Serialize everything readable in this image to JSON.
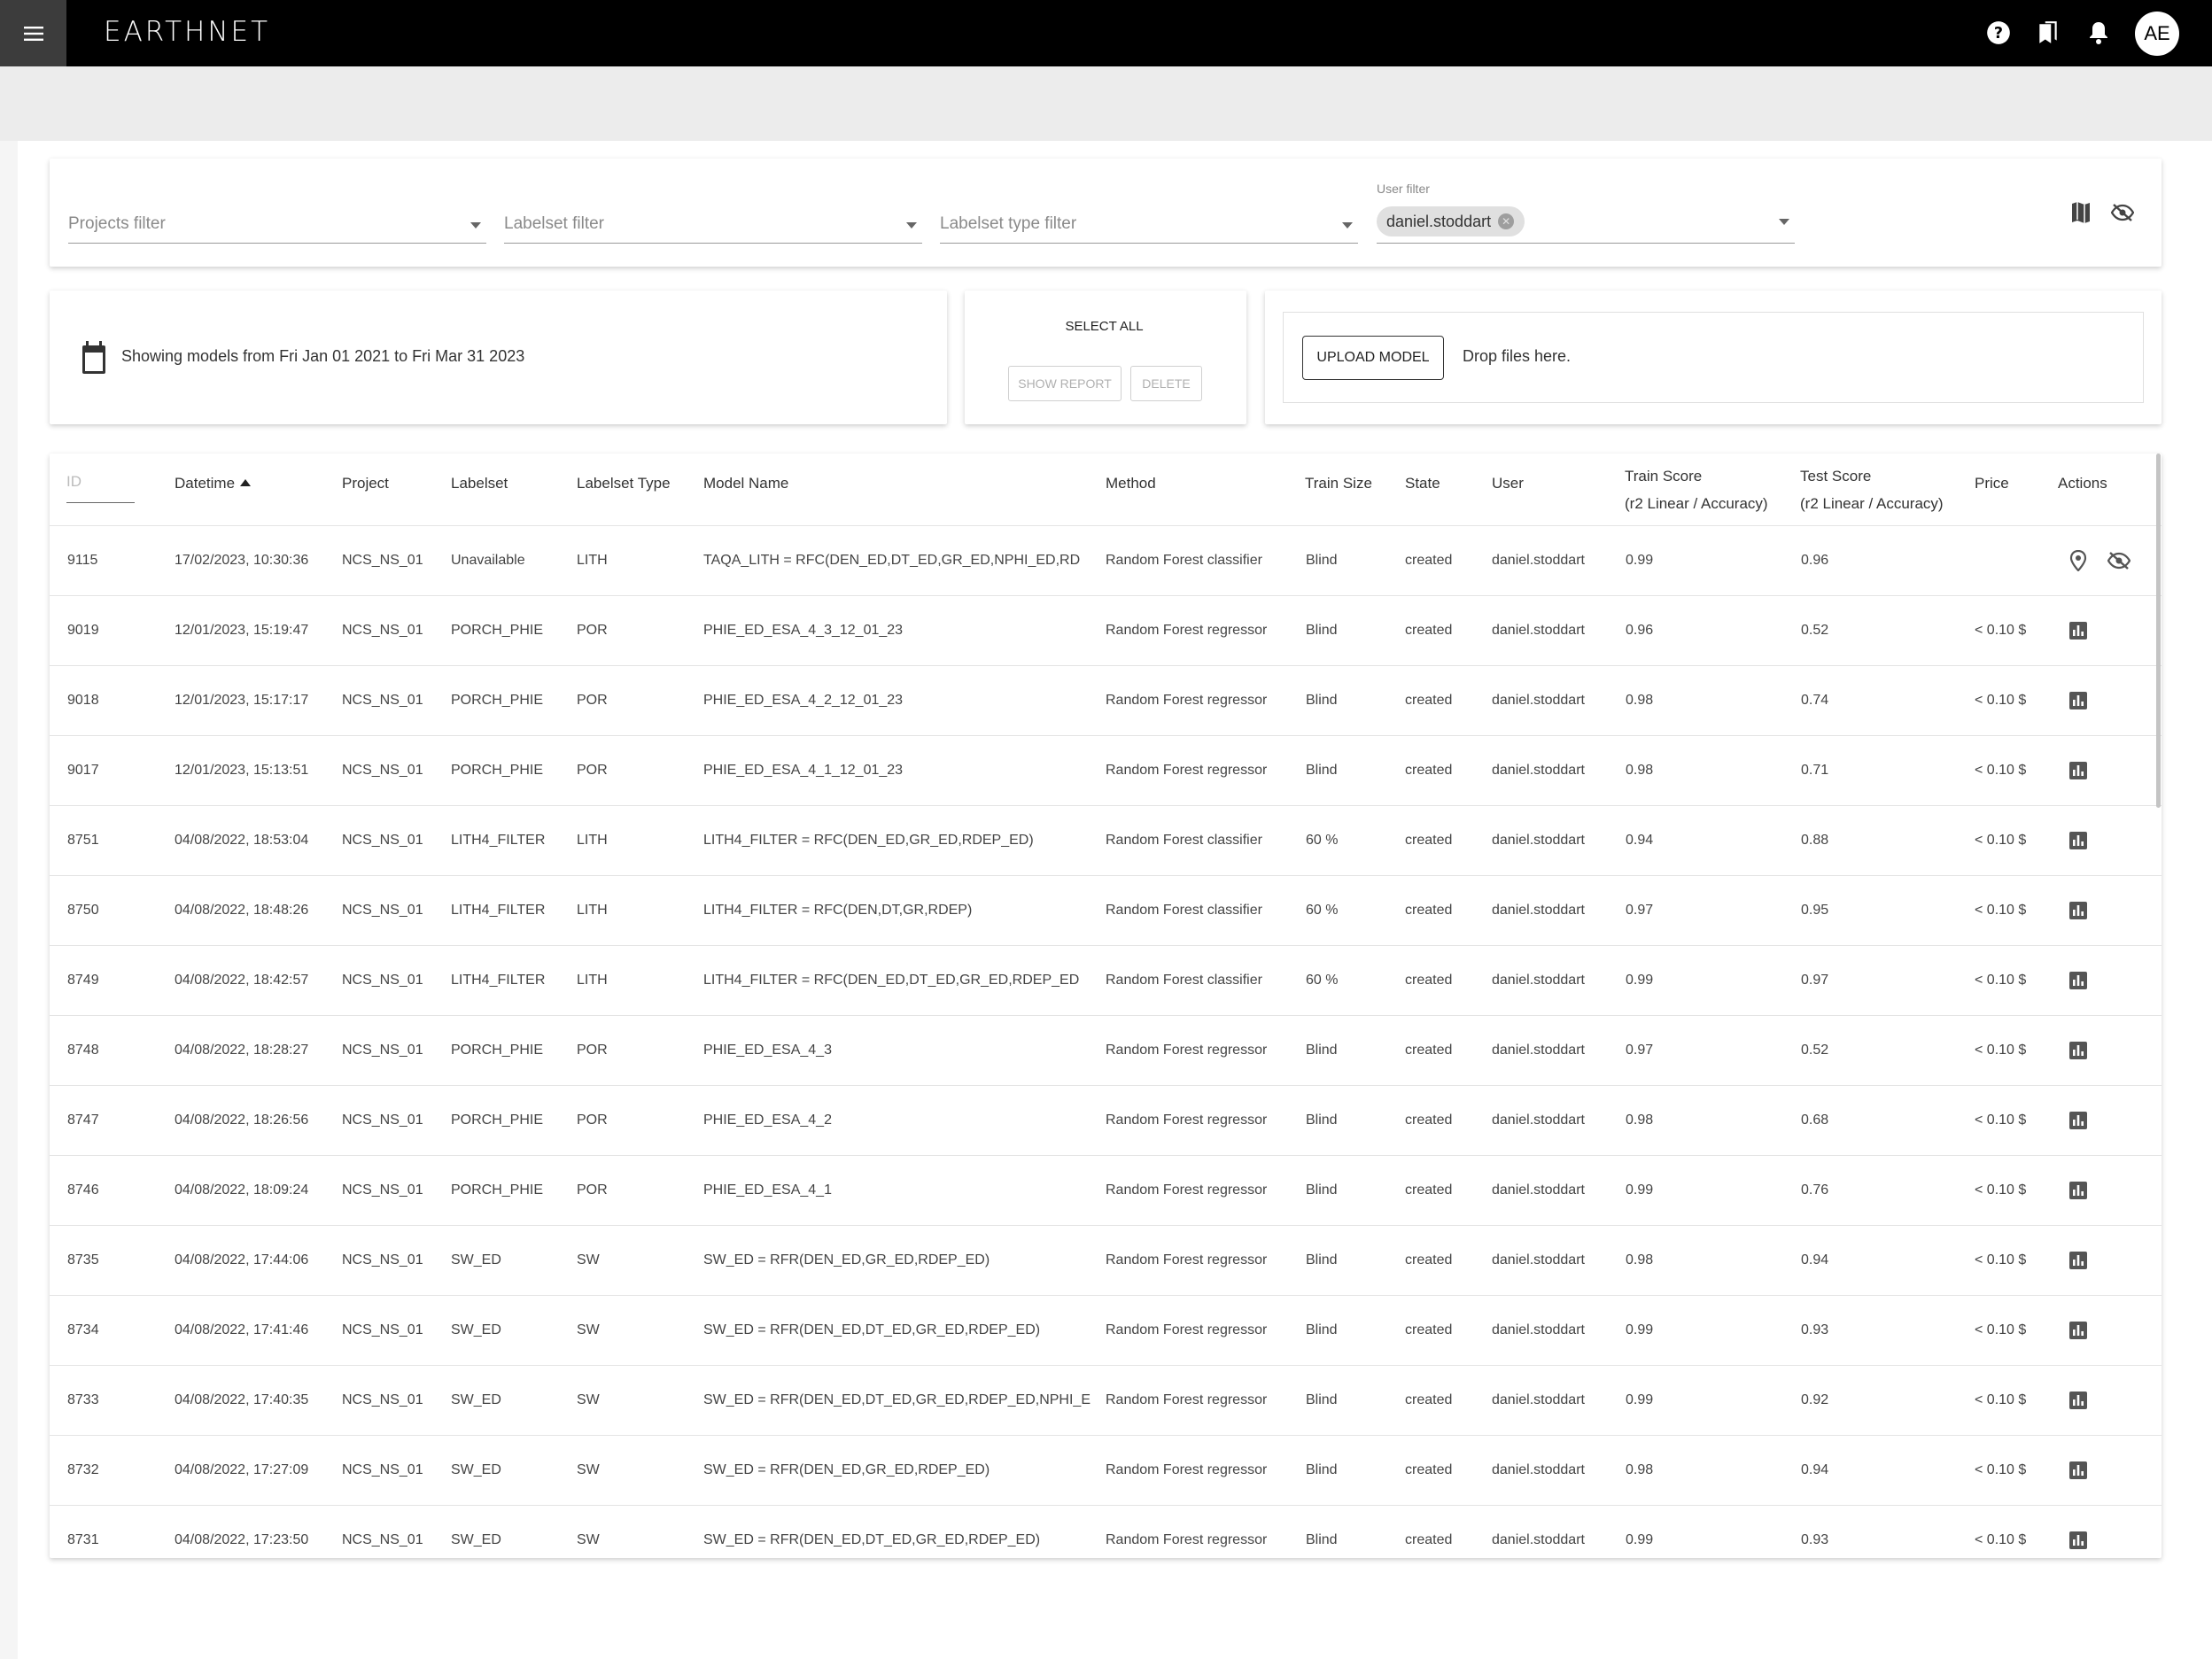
{
  "app": {
    "logo": "EARTHNET",
    "avatar_initials": "AE"
  },
  "topbar_icons": [
    "help-icon",
    "bookmarks-icon",
    "notifications-icon"
  ],
  "filters": {
    "projects_placeholder": "Projects filter",
    "labelset_placeholder": "Labelset filter",
    "labelset_type_placeholder": "Labelset type filter",
    "user_label": "User filter",
    "user_chip": "daniel.stoddart"
  },
  "date_range": "Showing models from Fri Jan 01 2021 to Fri Mar 31 2023",
  "selection": {
    "select_all": "SELECT ALL",
    "show_report": "SHOW REPORT",
    "delete": "DELETE"
  },
  "upload": {
    "button": "UPLOAD MODEL",
    "drop_text": "Drop files here."
  },
  "table": {
    "id_placeholder": "ID",
    "headers": {
      "datetime": "Datetime",
      "project": "Project",
      "labelset": "Labelset",
      "labelset_type": "Labelset Type",
      "model_name": "Model Name",
      "method": "Method",
      "train_size": "Train Size",
      "state": "State",
      "user": "User",
      "train_score": "Train Score",
      "train_score_sub": "(r2 Linear / Accuracy)",
      "test_score": "Test Score",
      "test_score_sub": "(r2 Linear / Accuracy)",
      "price": "Price",
      "actions": "Actions"
    },
    "rows": [
      {
        "id": "9115",
        "datetime": "17/02/2023, 10:30:36",
        "project": "NCS_NS_01",
        "labelset": "Unavailable",
        "type": "LITH",
        "model": "TAQA_LITH = RFC(DEN_ED,DT_ED,GR_ED,NPHI_ED,RD",
        "method": "Random Forest classifier",
        "train_size": "Blind",
        "state": "created",
        "user": "daniel.stoddart",
        "train": "0.99",
        "test": "0.96",
        "price": "",
        "actions": [
          "map-pin-icon",
          "visibility-off-icon"
        ]
      },
      {
        "id": "9019",
        "datetime": "12/01/2023, 15:19:47",
        "project": "NCS_NS_01",
        "labelset": "PORCH_PHIE",
        "type": "POR",
        "model": "PHIE_ED_ESA_4_3_12_01_23",
        "method": "Random Forest regressor",
        "train_size": "Blind",
        "state": "created",
        "user": "daniel.stoddart",
        "train": "0.96",
        "test": "0.52",
        "price": "< 0.10 $",
        "actions": [
          "bar-chart-icon"
        ]
      },
      {
        "id": "9018",
        "datetime": "12/01/2023, 15:17:17",
        "project": "NCS_NS_01",
        "labelset": "PORCH_PHIE",
        "type": "POR",
        "model": "PHIE_ED_ESA_4_2_12_01_23",
        "method": "Random Forest regressor",
        "train_size": "Blind",
        "state": "created",
        "user": "daniel.stoddart",
        "train": "0.98",
        "test": "0.74",
        "price": "< 0.10 $",
        "actions": [
          "bar-chart-icon"
        ]
      },
      {
        "id": "9017",
        "datetime": "12/01/2023, 15:13:51",
        "project": "NCS_NS_01",
        "labelset": "PORCH_PHIE",
        "type": "POR",
        "model": "PHIE_ED_ESA_4_1_12_01_23",
        "method": "Random Forest regressor",
        "train_size": "Blind",
        "state": "created",
        "user": "daniel.stoddart",
        "train": "0.98",
        "test": "0.71",
        "price": "< 0.10 $",
        "actions": [
          "bar-chart-icon"
        ]
      },
      {
        "id": "8751",
        "datetime": "04/08/2022, 18:53:04",
        "project": "NCS_NS_01",
        "labelset": "LITH4_FILTER",
        "type": "LITH",
        "model": "LITH4_FILTER = RFC(DEN_ED,GR_ED,RDEP_ED)",
        "method": "Random Forest classifier",
        "train_size": "60 %",
        "state": "created",
        "user": "daniel.stoddart",
        "train": "0.94",
        "test": "0.88",
        "price": "< 0.10 $",
        "actions": [
          "bar-chart-icon"
        ]
      },
      {
        "id": "8750",
        "datetime": "04/08/2022, 18:48:26",
        "project": "NCS_NS_01",
        "labelset": "LITH4_FILTER",
        "type": "LITH",
        "model": "LITH4_FILTER = RFC(DEN,DT,GR,RDEP)",
        "method": "Random Forest classifier",
        "train_size": "60 %",
        "state": "created",
        "user": "daniel.stoddart",
        "train": "0.97",
        "test": "0.95",
        "price": "< 0.10 $",
        "actions": [
          "bar-chart-icon"
        ]
      },
      {
        "id": "8749",
        "datetime": "04/08/2022, 18:42:57",
        "project": "NCS_NS_01",
        "labelset": "LITH4_FILTER",
        "type": "LITH",
        "model": "LITH4_FILTER = RFC(DEN_ED,DT_ED,GR_ED,RDEP_ED",
        "method": "Random Forest classifier",
        "train_size": "60 %",
        "state": "created",
        "user": "daniel.stoddart",
        "train": "0.99",
        "test": "0.97",
        "price": "< 0.10 $",
        "actions": [
          "bar-chart-icon"
        ]
      },
      {
        "id": "8748",
        "datetime": "04/08/2022, 18:28:27",
        "project": "NCS_NS_01",
        "labelset": "PORCH_PHIE",
        "type": "POR",
        "model": "PHIE_ED_ESA_4_3",
        "method": "Random Forest regressor",
        "train_size": "Blind",
        "state": "created",
        "user": "daniel.stoddart",
        "train": "0.97",
        "test": "0.52",
        "price": "< 0.10 $",
        "actions": [
          "bar-chart-icon"
        ]
      },
      {
        "id": "8747",
        "datetime": "04/08/2022, 18:26:56",
        "project": "NCS_NS_01",
        "labelset": "PORCH_PHIE",
        "type": "POR",
        "model": "PHIE_ED_ESA_4_2",
        "method": "Random Forest regressor",
        "train_size": "Blind",
        "state": "created",
        "user": "daniel.stoddart",
        "train": "0.98",
        "test": "0.68",
        "price": "< 0.10 $",
        "actions": [
          "bar-chart-icon"
        ]
      },
      {
        "id": "8746",
        "datetime": "04/08/2022, 18:09:24",
        "project": "NCS_NS_01",
        "labelset": "PORCH_PHIE",
        "type": "POR",
        "model": "PHIE_ED_ESA_4_1",
        "method": "Random Forest regressor",
        "train_size": "Blind",
        "state": "created",
        "user": "daniel.stoddart",
        "train": "0.99",
        "test": "0.76",
        "price": "< 0.10 $",
        "actions": [
          "bar-chart-icon"
        ]
      },
      {
        "id": "8735",
        "datetime": "04/08/2022, 17:44:06",
        "project": "NCS_NS_01",
        "labelset": "SW_ED",
        "type": "SW",
        "model": "SW_ED = RFR(DEN_ED,GR_ED,RDEP_ED)",
        "method": "Random Forest regressor",
        "train_size": "Blind",
        "state": "created",
        "user": "daniel.stoddart",
        "train": "0.98",
        "test": "0.94",
        "price": "< 0.10 $",
        "actions": [
          "bar-chart-icon"
        ]
      },
      {
        "id": "8734",
        "datetime": "04/08/2022, 17:41:46",
        "project": "NCS_NS_01",
        "labelset": "SW_ED",
        "type": "SW",
        "model": "SW_ED = RFR(DEN_ED,DT_ED,GR_ED,RDEP_ED)",
        "method": "Random Forest regressor",
        "train_size": "Blind",
        "state": "created",
        "user": "daniel.stoddart",
        "train": "0.99",
        "test": "0.93",
        "price": "< 0.10 $",
        "actions": [
          "bar-chart-icon"
        ]
      },
      {
        "id": "8733",
        "datetime": "04/08/2022, 17:40:35",
        "project": "NCS_NS_01",
        "labelset": "SW_ED",
        "type": "SW",
        "model": "SW_ED = RFR(DEN_ED,DT_ED,GR_ED,RDEP_ED,NPHI_E",
        "method": "Random Forest regressor",
        "train_size": "Blind",
        "state": "created",
        "user": "daniel.stoddart",
        "train": "0.99",
        "test": "0.92",
        "price": "< 0.10 $",
        "actions": [
          "bar-chart-icon"
        ]
      },
      {
        "id": "8732",
        "datetime": "04/08/2022, 17:27:09",
        "project": "NCS_NS_01",
        "labelset": "SW_ED",
        "type": "SW",
        "model": "SW_ED = RFR(DEN_ED,GR_ED,RDEP_ED)",
        "method": "Random Forest regressor",
        "train_size": "Blind",
        "state": "created",
        "user": "daniel.stoddart",
        "train": "0.98",
        "test": "0.94",
        "price": "< 0.10 $",
        "actions": [
          "bar-chart-icon"
        ]
      },
      {
        "id": "8731",
        "datetime": "04/08/2022, 17:23:50",
        "project": "NCS_NS_01",
        "labelset": "SW_ED",
        "type": "SW",
        "model": "SW_ED = RFR(DEN_ED,DT_ED,GR_ED,RDEP_ED)",
        "method": "Random Forest regressor",
        "train_size": "Blind",
        "state": "created",
        "user": "daniel.stoddart",
        "train": "0.99",
        "test": "0.93",
        "price": "< 0.10 $",
        "actions": [
          "bar-chart-icon"
        ]
      }
    ]
  }
}
